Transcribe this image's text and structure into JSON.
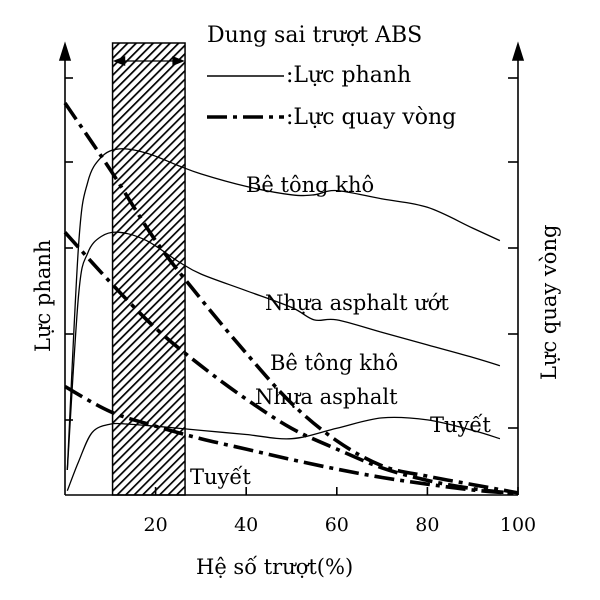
{
  "chart_data": {
    "type": "line",
    "title": "",
    "xlabel": "Hệ số trượt(%)",
    "ylabel_left": "Lực phanh",
    "ylabel_right": "Lực quay vòng",
    "xlim": [
      0,
      100
    ],
    "x_ticks": [
      {
        "value": 20,
        "label": "20"
      },
      {
        "value": 40,
        "label": "40"
      },
      {
        "value": 60,
        "label": "60"
      },
      {
        "value": 80,
        "label": "80"
      },
      {
        "value": 100,
        "label": "100"
      }
    ],
    "ylim": [
      0,
      1
    ],
    "abs_band": {
      "label": "Dung sai trượt ABS",
      "x_range": [
        10.5,
        26.5
      ]
    },
    "legend": [
      {
        "label": ":Lực phanh",
        "style": "solid"
      },
      {
        "label": ":Lực quay vòng",
        "style": "dash-dot"
      }
    ],
    "series": [
      {
        "name": "Bê tông khô",
        "style": "solid",
        "points": [
          [
            0.5,
            0.06
          ],
          [
            3,
            0.6
          ],
          [
            5,
            0.75
          ],
          [
            8,
            0.81
          ],
          [
            12,
            0.83
          ],
          [
            18,
            0.82
          ],
          [
            25,
            0.79
          ],
          [
            30,
            0.77
          ],
          [
            40,
            0.74
          ],
          [
            50,
            0.72
          ],
          [
            55,
            0.72
          ],
          [
            60,
            0.73
          ],
          [
            70,
            0.71
          ],
          [
            80,
            0.69
          ],
          [
            90,
            0.64
          ],
          [
            96,
            0.61
          ]
        ]
      },
      {
        "name": "Nhựa asphalt ướt",
        "style": "solid",
        "points": [
          [
            0.5,
            0.06
          ],
          [
            3,
            0.48
          ],
          [
            5,
            0.58
          ],
          [
            8,
            0.62
          ],
          [
            12,
            0.63
          ],
          [
            18,
            0.61
          ],
          [
            25,
            0.56
          ],
          [
            30,
            0.53
          ],
          [
            40,
            0.49
          ],
          [
            50,
            0.45
          ],
          [
            55,
            0.42
          ],
          [
            60,
            0.42
          ],
          [
            70,
            0.39
          ],
          [
            80,
            0.36
          ],
          [
            90,
            0.33
          ],
          [
            96,
            0.31
          ]
        ]
      },
      {
        "name": "Tuyết",
        "style": "solid",
        "points": [
          [
            0.5,
            0.01
          ],
          [
            3,
            0.08
          ],
          [
            6,
            0.15
          ],
          [
            10,
            0.17
          ],
          [
            14,
            0.17
          ],
          [
            20,
            0.165
          ],
          [
            30,
            0.155
          ],
          [
            40,
            0.145
          ],
          [
            50,
            0.135
          ],
          [
            60,
            0.16
          ],
          [
            70,
            0.185
          ],
          [
            80,
            0.18
          ],
          [
            90,
            0.155
          ],
          [
            96,
            0.135
          ]
        ]
      },
      {
        "name": "Bê tông khô",
        "style": "dash-dot",
        "points": [
          [
            0,
            0.94
          ],
          [
            10,
            0.78
          ],
          [
            20,
            0.61
          ],
          [
            30,
            0.47
          ],
          [
            40,
            0.34
          ],
          [
            50,
            0.22
          ],
          [
            60,
            0.13
          ],
          [
            70,
            0.07
          ],
          [
            80,
            0.045
          ],
          [
            90,
            0.025
          ],
          [
            100,
            0.005
          ]
        ]
      },
      {
        "name": "Nhựa asphalt",
        "style": "dash-dot",
        "points": [
          [
            0,
            0.63
          ],
          [
            10,
            0.51
          ],
          [
            20,
            0.4
          ],
          [
            30,
            0.31
          ],
          [
            40,
            0.23
          ],
          [
            50,
            0.16
          ],
          [
            60,
            0.11
          ],
          [
            70,
            0.065
          ],
          [
            80,
            0.035
          ],
          [
            90,
            0.015
          ],
          [
            100,
            0.003
          ]
        ]
      },
      {
        "name": "Tuyết",
        "style": "dash-dot",
        "points": [
          [
            0,
            0.26
          ],
          [
            10,
            0.2
          ],
          [
            20,
            0.165
          ],
          [
            30,
            0.135
          ],
          [
            40,
            0.11
          ],
          [
            50,
            0.085
          ],
          [
            60,
            0.062
          ],
          [
            70,
            0.042
          ],
          [
            80,
            0.026
          ],
          [
            90,
            0.012
          ],
          [
            100,
            0.003
          ]
        ]
      }
    ]
  }
}
